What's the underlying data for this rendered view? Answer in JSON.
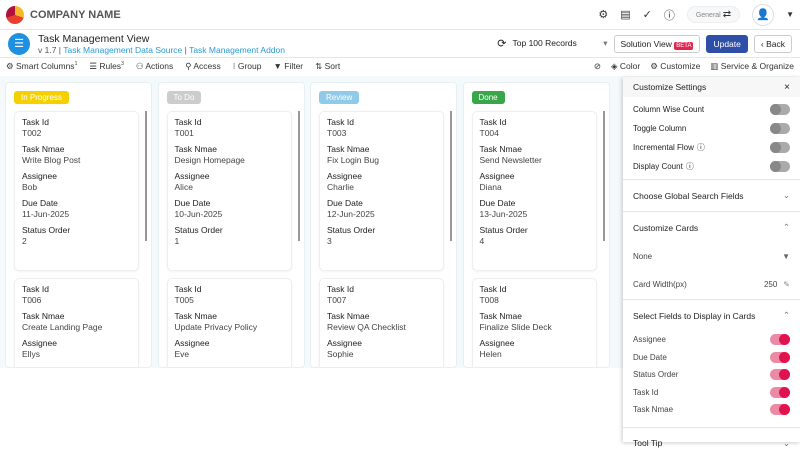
{
  "header": {
    "company": "COMPANY NAME",
    "workspace": "General"
  },
  "app": {
    "title": "Task Management View",
    "version": "v 1.7",
    "data_source": "Task Management Data Source",
    "addon": "Task Management Addon",
    "records": "Top 100 Records",
    "solution_view": "Solution View",
    "beta": "BETA",
    "update": "Update",
    "back": "Back"
  },
  "toolbar": {
    "smart_columns": "Smart Columns",
    "smart_columns_count": "1",
    "rules": "Rules",
    "rules_count": "3",
    "actions": "Actions",
    "access": "Access",
    "group": "Group",
    "filter": "Filter",
    "sort": "Sort",
    "color": "Color",
    "customize": "Customize",
    "service": "Service & Organize"
  },
  "columns": [
    {
      "status": "In Progress",
      "color": "#f5d000",
      "cards": [
        {
          "id": "T002",
          "name": "Write Blog Post",
          "assignee": "Bob",
          "due": "11-Jun-2025",
          "order": "2"
        },
        {
          "id": "T006",
          "name": "Create Landing Page",
          "assignee": "Ellys"
        }
      ]
    },
    {
      "status": "To Do",
      "color": "#cccccc",
      "cards": [
        {
          "id": "T001",
          "name": "Design Homepage",
          "assignee": "Alice",
          "due": "10-Jun-2025",
          "order": "1"
        },
        {
          "id": "T005",
          "name": "Update Privacy Policy",
          "assignee": "Eve"
        }
      ]
    },
    {
      "status": "Review",
      "color": "#8fcbe8",
      "cards": [
        {
          "id": "T003",
          "name": "Fix Login Bug",
          "assignee": "Charlie",
          "due": "12-Jun-2025",
          "order": "3"
        },
        {
          "id": "T007",
          "name": "Review QA Checklist",
          "assignee": "Sophie"
        }
      ]
    },
    {
      "status": "Done",
      "color": "#3aa64a",
      "cards": [
        {
          "id": "T004",
          "name": "Send Newsletter",
          "assignee": "Diana",
          "due": "13-Jun-2025",
          "order": "4"
        },
        {
          "id": "T008",
          "name": "Finalize Slide Deck",
          "assignee": "Helen"
        }
      ]
    }
  ],
  "labels": {
    "id": "Task Id",
    "name": "Task Nmae",
    "assignee": "Assignee",
    "due": "Due Date",
    "order": "Status Order"
  },
  "panel": {
    "title": "Customize Settings",
    "toggles": [
      {
        "label": "Column Wise Count",
        "on": false
      },
      {
        "label": "Toggle Column",
        "on": false
      },
      {
        "label": "Incremental Flow",
        "on": false,
        "info": true
      },
      {
        "label": "Display Count",
        "on": false,
        "info": true
      }
    ],
    "global_search": "Choose Global Search Fields",
    "customize_cards": "Customize Cards",
    "card_select": "None",
    "card_width_label": "Card Width(px)",
    "card_width": "250",
    "select_fields": "Select Fields to Display in Cards",
    "fields": [
      {
        "label": "Assignee",
        "on": true
      },
      {
        "label": "Due Date",
        "on": true
      },
      {
        "label": "Status Order",
        "on": true
      },
      {
        "label": "Task Id",
        "on": true
      },
      {
        "label": "Task Nmae",
        "on": true
      }
    ],
    "tooltip": "Tool Tip"
  }
}
